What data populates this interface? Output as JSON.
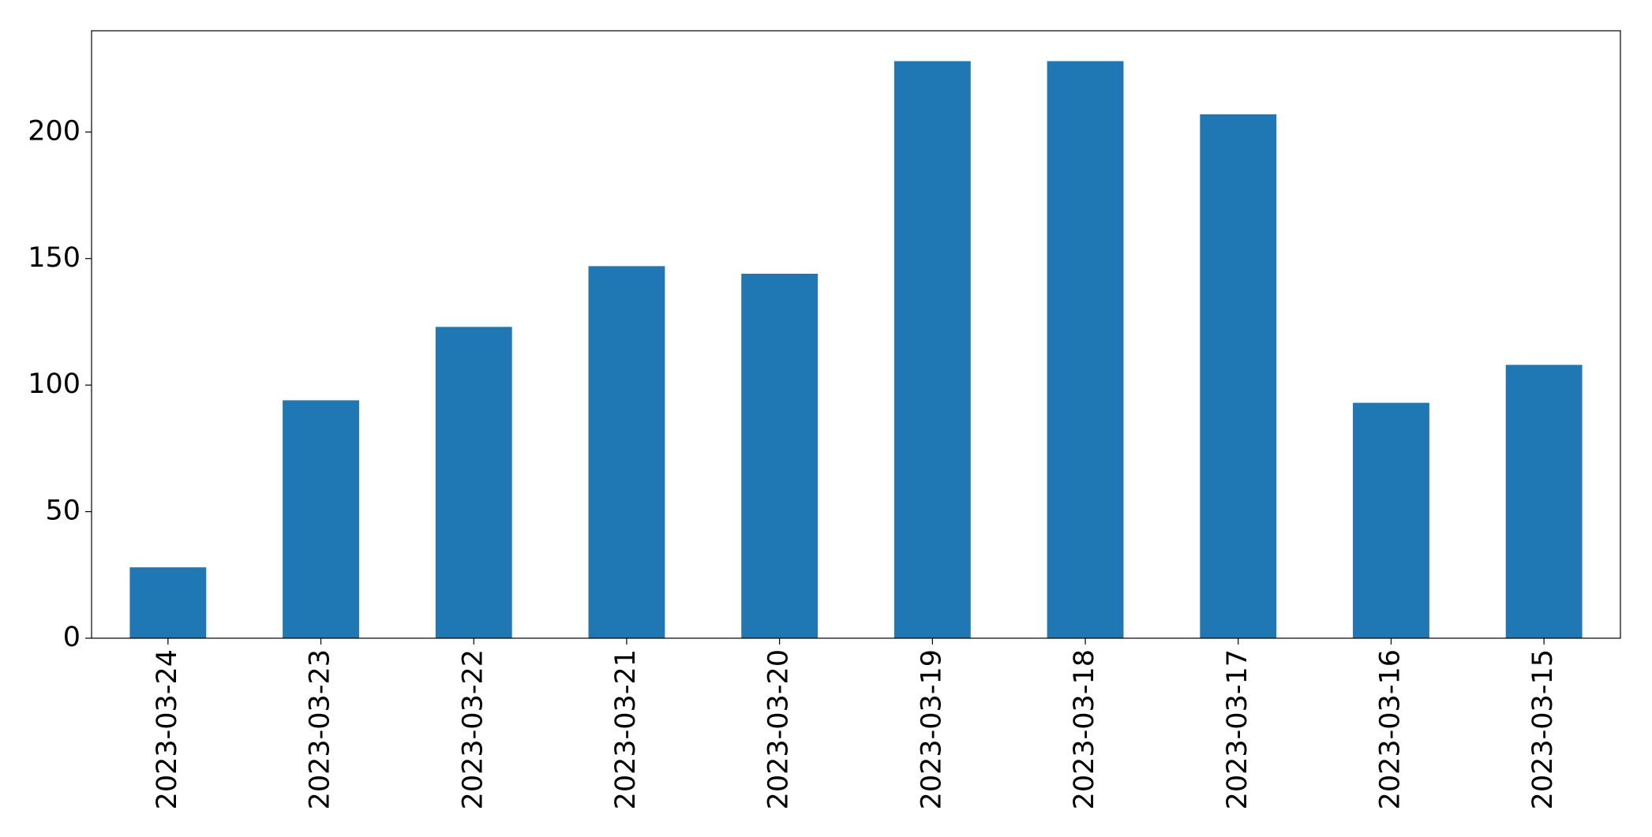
{
  "chart_data": {
    "type": "bar",
    "categories": [
      "2023-03-24",
      "2023-03-23",
      "2023-03-22",
      "2023-03-21",
      "2023-03-20",
      "2023-03-19",
      "2023-03-18",
      "2023-03-17",
      "2023-03-16",
      "2023-03-15"
    ],
    "values": [
      28,
      94,
      123,
      147,
      144,
      228,
      228,
      207,
      93,
      108
    ],
    "color": "#1f77b4",
    "ylim": [
      0,
      240
    ],
    "yticks": [
      0,
      50,
      100,
      150,
      200
    ],
    "grid": false
  }
}
